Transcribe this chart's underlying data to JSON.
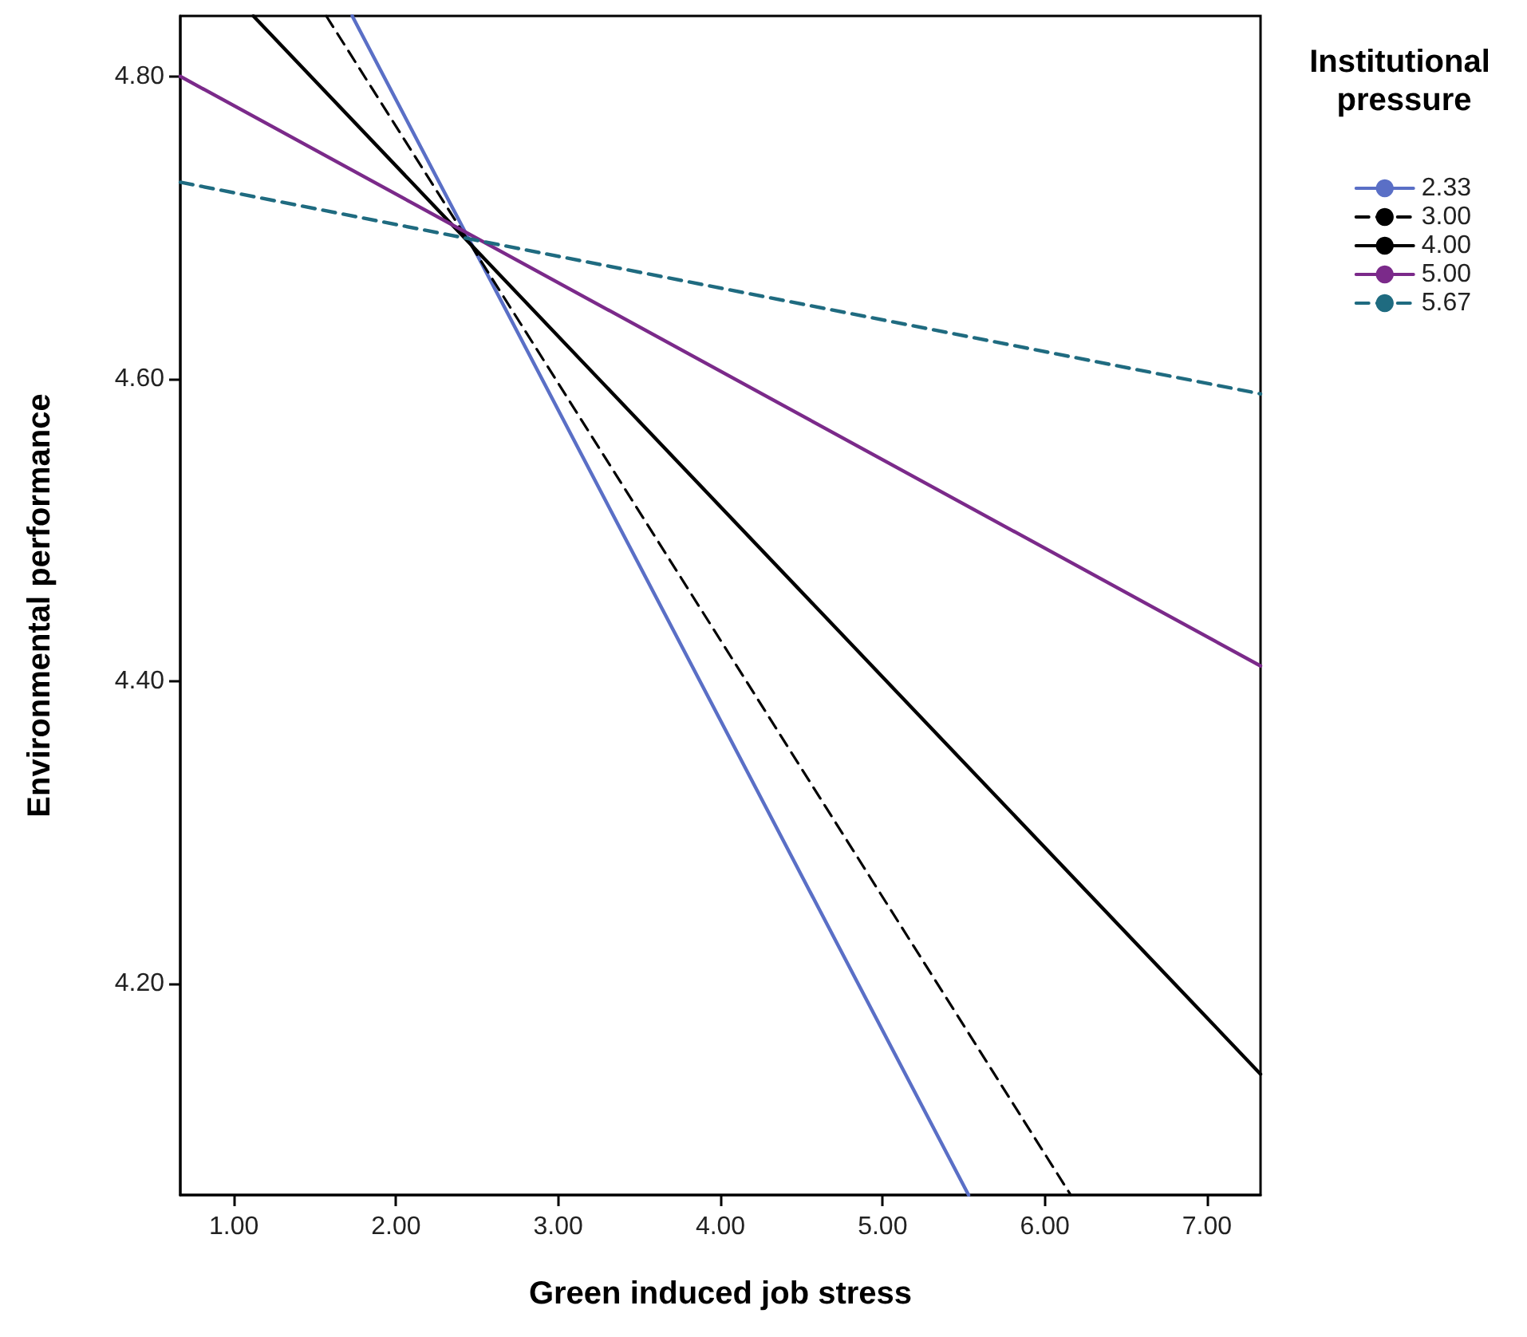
{
  "chart_data": {
    "type": "line",
    "xlabel": "Green induced job stress",
    "ylabel": "Environmental performance",
    "legend_title": "Institutional pressure",
    "legend": "right",
    "grid": false,
    "marker": "none",
    "xlim": [
      0.67,
      7.33
    ],
    "ylim": [
      4.06,
      4.84
    ],
    "xticks": [
      {
        "value": 1,
        "label": "1.00"
      },
      {
        "value": 2,
        "label": "2.00"
      },
      {
        "value": 3,
        "label": "3.00"
      },
      {
        "value": 4,
        "label": "4.00"
      },
      {
        "value": 5,
        "label": "5.00"
      },
      {
        "value": 6,
        "label": "6.00"
      },
      {
        "value": 7,
        "label": "7.00"
      }
    ],
    "yticks": [
      {
        "value": 4.2,
        "label": "4.20"
      },
      {
        "value": 4.4,
        "label": "4.40"
      },
      {
        "value": 4.6,
        "label": "4.60"
      },
      {
        "value": 4.8,
        "label": "4.80"
      }
    ],
    "series": [
      {
        "name": "2.33",
        "color": "#5a6fc6",
        "line_style": "solid",
        "x": [
          1.73,
          5.53
        ],
        "values": [
          4.84,
          4.06
        ]
      },
      {
        "name": "3.00",
        "color": "#000000",
        "line_style": "dashed",
        "x": [
          1.57,
          6.16
        ],
        "values": [
          4.84,
          4.06
        ]
      },
      {
        "name": "4.00",
        "color": "#000000",
        "line_style": "solid",
        "x": [
          1.12,
          7.33
        ],
        "values": [
          4.84,
          4.14
        ]
      },
      {
        "name": "5.00",
        "color": "#7b2a8a",
        "line_style": "solid",
        "x": [
          0.67,
          7.33
        ],
        "values": [
          4.8,
          4.41
        ]
      },
      {
        "name": "5.67",
        "color": "#1f6b80",
        "line_style": "dashed",
        "x": [
          0.67,
          7.33
        ],
        "values": [
          4.73,
          4.59
        ]
      }
    ]
  }
}
